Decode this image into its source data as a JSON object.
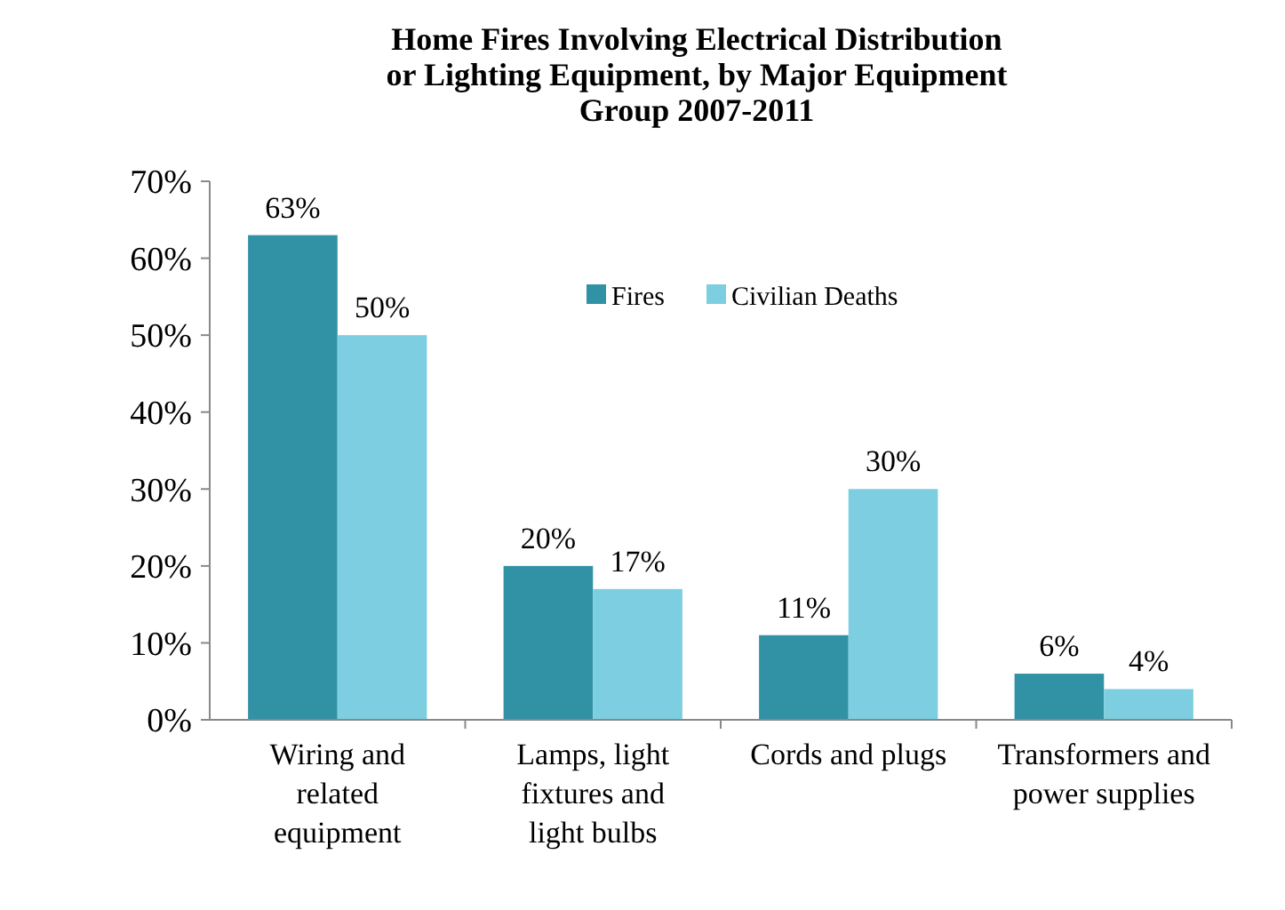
{
  "chart_data": {
    "type": "bar",
    "title": "Home Fires Involving Electrical  Distribution or Lighting Equipment, by Major Equipment Group 2007-2011",
    "categories": [
      "Wiring and related equipment",
      "Lamps, light fixtures and light bulbs",
      "Cords and plugs",
      "Transformers and power supplies"
    ],
    "series": [
      {
        "name": "Fires",
        "color": "#3191a5",
        "values": [
          63,
          20,
          11,
          6
        ],
        "value_labels": [
          "63%",
          "20%",
          "11%",
          "6%"
        ]
      },
      {
        "name": "Civilian Deaths",
        "color": "#7dcee0",
        "values": [
          50,
          17,
          30,
          4
        ],
        "value_labels": [
          "50%",
          "17%",
          "30%",
          "4%"
        ]
      }
    ],
    "ylim": [
      0,
      70
    ],
    "yticks": [
      {
        "value": 0,
        "label": "0%"
      },
      {
        "value": 10,
        "label": "10%"
      },
      {
        "value": 20,
        "label": "20%"
      },
      {
        "value": 30,
        "label": "30%"
      },
      {
        "value": 40,
        "label": "40%"
      },
      {
        "value": 50,
        "label": "50%"
      },
      {
        "value": 60,
        "label": "60%"
      },
      {
        "value": 70,
        "label": "70%"
      }
    ],
    "legend": "top right",
    "grid": false
  }
}
